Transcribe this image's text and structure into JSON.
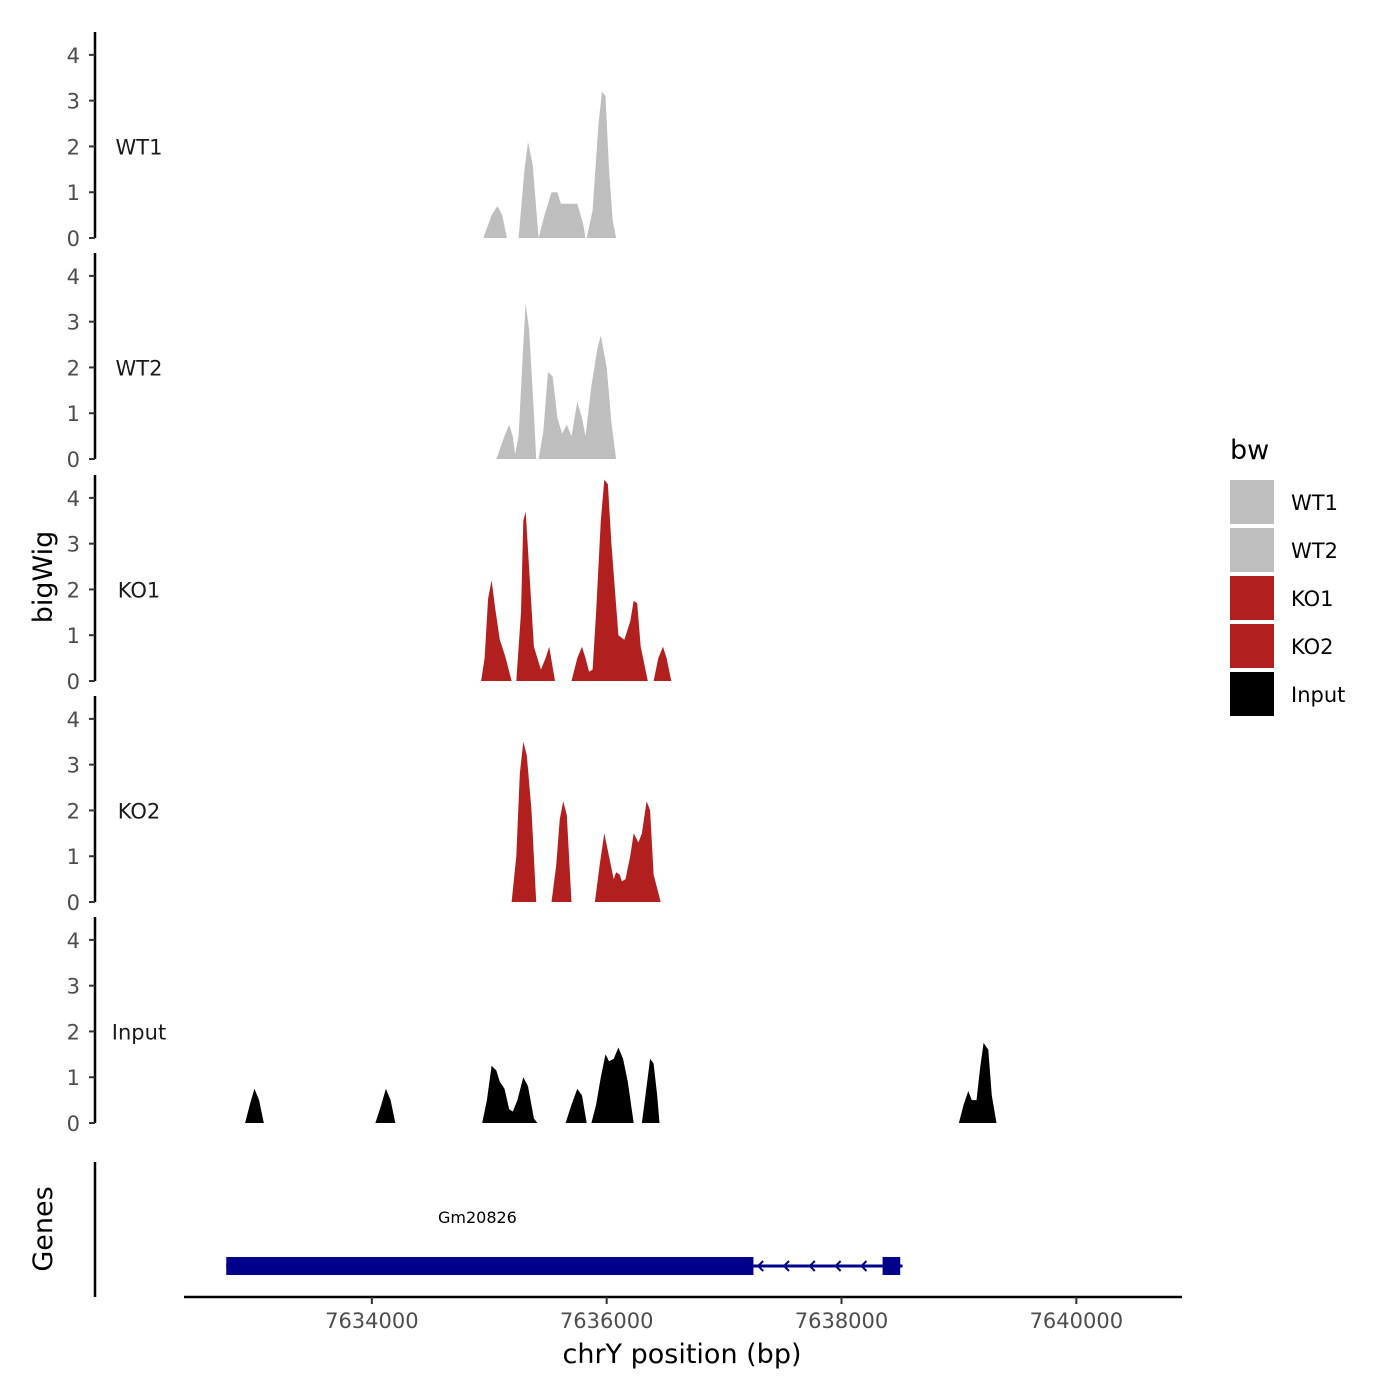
{
  "chart_data": {
    "type": "area",
    "title": "",
    "xlabel": "chrY position (bp)",
    "ylabel": "bigWig",
    "genes_ylabel": "Genes",
    "xlim": [
      7632400,
      7640900
    ],
    "ylim": [
      0,
      4.5
    ],
    "x_ticks": [
      7634000,
      7636000,
      7638000,
      7640000
    ],
    "x_tick_labels": [
      "7634000",
      "7636000",
      "7638000",
      "7640000"
    ],
    "y_ticks": [
      0,
      1,
      2,
      3,
      4
    ],
    "y_tick_labels": [
      "0",
      "1",
      "2",
      "3",
      "4"
    ],
    "legend": {
      "title": "bw",
      "position": "right",
      "entries": [
        {
          "label": "WT1",
          "color": "#bebebe"
        },
        {
          "label": "WT2",
          "color": "#bebebe"
        },
        {
          "label": "KO1",
          "color": "#b21f1f"
        },
        {
          "label": "KO2",
          "color": "#b21f1f"
        },
        {
          "label": "Input",
          "color": "#000000"
        }
      ]
    },
    "series": [
      {
        "name": "WT1",
        "color": "#bebebe",
        "segments": [
          [
            [
              7634950,
              0
            ],
            [
              7635020,
              0.5
            ],
            [
              7635070,
              0.7
            ],
            [
              7635110,
              0.5
            ],
            [
              7635150,
              0
            ]
          ],
          [
            [
              7635250,
              0
            ],
            [
              7635300,
              1.5
            ],
            [
              7635330,
              2.1
            ],
            [
              7635370,
              1.6
            ],
            [
              7635420,
              0
            ]
          ],
          [
            [
              7635420,
              0
            ],
            [
              7635470,
              0.5
            ],
            [
              7635530,
              1.0
            ],
            [
              7635580,
              1.0
            ],
            [
              7635610,
              0.75
            ],
            [
              7635680,
              0.75
            ],
            [
              7635750,
              0.75
            ],
            [
              7635800,
              0.3
            ],
            [
              7635820,
              0
            ]
          ],
          [
            [
              7635830,
              0
            ],
            [
              7635880,
              0.6
            ],
            [
              7635930,
              2.5
            ],
            [
              7635960,
              3.2
            ],
            [
              7635990,
              3.1
            ],
            [
              7636020,
              1.5
            ],
            [
              7636050,
              0.4
            ],
            [
              7636080,
              0
            ]
          ]
        ]
      },
      {
        "name": "WT2",
        "color": "#bebebe",
        "segments": [
          [
            [
              7635060,
              0
            ],
            [
              7635130,
              0.5
            ],
            [
              7635170,
              0.75
            ],
            [
              7635200,
              0.5
            ],
            [
              7635220,
              0.1
            ],
            [
              7635250,
              0.5
            ],
            [
              7635290,
              2.5
            ],
            [
              7635310,
              3.4
            ],
            [
              7635340,
              2.8
            ],
            [
              7635380,
              1.0
            ],
            [
              7635400,
              0
            ]
          ],
          [
            [
              7635420,
              0
            ],
            [
              7635460,
              0.6
            ],
            [
              7635500,
              1.9
            ],
            [
              7635540,
              1.8
            ],
            [
              7635580,
              0.9
            ],
            [
              7635620,
              0.55
            ],
            [
              7635660,
              0.75
            ],
            [
              7635700,
              0.5
            ],
            [
              7635750,
              1.25
            ],
            [
              7635790,
              0.9
            ],
            [
              7635820,
              0.5
            ],
            [
              7635870,
              1.6
            ],
            [
              7635920,
              2.4
            ],
            [
              7635950,
              2.7
            ],
            [
              7636000,
              2.0
            ],
            [
              7636040,
              0.8
            ],
            [
              7636080,
              0
            ]
          ]
        ]
      },
      {
        "name": "KO1",
        "color": "#b21f1f",
        "segments": [
          [
            [
              7634930,
              0
            ],
            [
              7634960,
              0.5
            ],
            [
              7634990,
              1.8
            ],
            [
              7635020,
              2.2
            ],
            [
              7635050,
              1.6
            ],
            [
              7635090,
              0.9
            ],
            [
              7635110,
              0.75
            ],
            [
              7635140,
              0.5
            ],
            [
              7635190,
              0
            ]
          ],
          [
            [
              7635230,
              0
            ],
            [
              7635270,
              1.5
            ],
            [
              7635290,
              3.5
            ],
            [
              7635310,
              3.7
            ],
            [
              7635350,
              2.0
            ],
            [
              7635380,
              0.75
            ],
            [
              7635410,
              0.5
            ],
            [
              7635440,
              0.25
            ],
            [
              7635480,
              0.5
            ],
            [
              7635510,
              0.75
            ],
            [
              7635560,
              0
            ]
          ],
          [
            [
              7635700,
              0
            ],
            [
              7635750,
              0.5
            ],
            [
              7635790,
              0.75
            ],
            [
              7635820,
              0.5
            ],
            [
              7635850,
              0.2
            ],
            [
              7635880,
              0.25
            ],
            [
              7635910,
              1.5
            ],
            [
              7635950,
              3.5
            ],
            [
              7635980,
              4.4
            ],
            [
              7636010,
              4.3
            ],
            [
              7636040,
              3.0
            ],
            [
              7636070,
              2.0
            ],
            [
              7636100,
              1.0
            ],
            [
              7636150,
              0.9
            ],
            [
              7636200,
              1.3
            ],
            [
              7636230,
              1.75
            ],
            [
              7636260,
              1.7
            ],
            [
              7636290,
              0.75
            ],
            [
              7636310,
              0.5
            ],
            [
              7636350,
              0
            ]
          ],
          [
            [
              7636400,
              0
            ],
            [
              7636440,
              0.5
            ],
            [
              7636480,
              0.75
            ],
            [
              7636510,
              0.5
            ],
            [
              7636550,
              0
            ]
          ]
        ]
      },
      {
        "name": "KO2",
        "color": "#b21f1f",
        "segments": [
          [
            [
              7635190,
              0
            ],
            [
              7635230,
              1.0
            ],
            [
              7635260,
              2.8
            ],
            [
              7635290,
              3.5
            ],
            [
              7635320,
              3.2
            ],
            [
              7635360,
              2.0
            ],
            [
              7635400,
              0
            ]
          ],
          [
            [
              7635530,
              0
            ],
            [
              7635570,
              0.8
            ],
            [
              7635600,
              1.8
            ],
            [
              7635630,
              2.2
            ],
            [
              7635660,
              1.9
            ],
            [
              7635700,
              0
            ]
          ],
          [
            [
              7635900,
              0
            ],
            [
              7635940,
              0.8
            ],
            [
              7635980,
              1.5
            ],
            [
              7636020,
              1.0
            ],
            [
              7636060,
              0.5
            ],
            [
              7636080,
              0.65
            ],
            [
              7636110,
              0.6
            ],
            [
              7636130,
              0.45
            ],
            [
              7636160,
              0.5
            ],
            [
              7636200,
              1.0
            ],
            [
              7636230,
              1.5
            ],
            [
              7636270,
              1.3
            ],
            [
              7636300,
              1.5
            ],
            [
              7636340,
              2.2
            ],
            [
              7636370,
              2.0
            ],
            [
              7636400,
              0.6
            ],
            [
              7636460,
              0
            ]
          ]
        ]
      },
      {
        "name": "Input",
        "color": "#000000",
        "segments": [
          [
            [
              7632920,
              0
            ],
            [
              7632960,
              0.4
            ],
            [
              7633000,
              0.75
            ],
            [
              7633040,
              0.5
            ],
            [
              7633080,
              0
            ]
          ],
          [
            [
              7634030,
              0
            ],
            [
              7634080,
              0.4
            ],
            [
              7634120,
              0.75
            ],
            [
              7634160,
              0.5
            ],
            [
              7634200,
              0
            ]
          ],
          [
            [
              7634940,
              0
            ],
            [
              7634980,
              0.5
            ],
            [
              7635020,
              1.25
            ],
            [
              7635060,
              1.15
            ],
            [
              7635090,
              0.9
            ],
            [
              7635130,
              0.75
            ],
            [
              7635170,
              0.3
            ],
            [
              7635200,
              0.25
            ],
            [
              7635240,
              0.5
            ],
            [
              7635290,
              1.0
            ],
            [
              7635330,
              0.8
            ],
            [
              7635380,
              0.1
            ],
            [
              7635410,
              0
            ]
          ],
          [
            [
              7635650,
              0
            ],
            [
              7635700,
              0.4
            ],
            [
              7635750,
              0.75
            ],
            [
              7635790,
              0.6
            ],
            [
              7635830,
              0
            ]
          ],
          [
            [
              7635870,
              0
            ],
            [
              7635910,
              0.4
            ],
            [
              7635950,
              1.0
            ],
            [
              7635990,
              1.5
            ],
            [
              7636020,
              1.35
            ],
            [
              7636060,
              1.4
            ],
            [
              7636100,
              1.65
            ],
            [
              7636140,
              1.4
            ],
            [
              7636180,
              0.9
            ],
            [
              7636230,
              0
            ]
          ],
          [
            [
              7636300,
              0
            ],
            [
              7636340,
              0.8
            ],
            [
              7636370,
              1.4
            ],
            [
              7636400,
              1.3
            ],
            [
              7636430,
              0.6
            ],
            [
              7636450,
              0
            ]
          ],
          [
            [
              7639000,
              0
            ],
            [
              7639040,
              0.4
            ],
            [
              7639080,
              0.7
            ],
            [
              7639110,
              0.5
            ],
            [
              7639150,
              0.5
            ],
            [
              7639180,
              1.2
            ],
            [
              7639210,
              1.75
            ],
            [
              7639250,
              1.6
            ],
            [
              7639280,
              0.6
            ],
            [
              7639320,
              0
            ]
          ]
        ]
      }
    ],
    "genes": [
      {
        "name": "Gm20826",
        "start": 7632760,
        "end": 7638520,
        "strand": "-",
        "thick_start": 7632760,
        "thick_end": 7637250,
        "small_exons": [
          [
            7638350,
            7638500
          ]
        ],
        "color": "#00008b"
      }
    ]
  }
}
